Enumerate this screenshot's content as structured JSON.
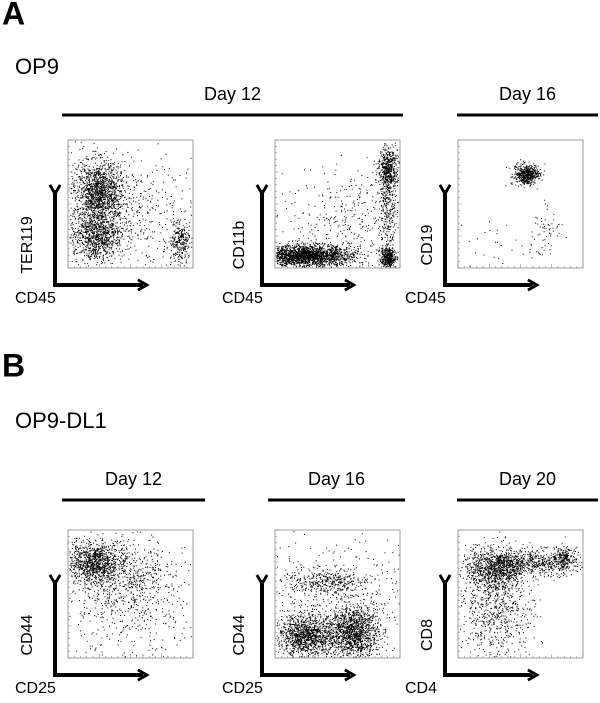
{
  "panel_a": {
    "label": "A",
    "title": "OP9",
    "groups": [
      {
        "label": "Day 12"
      },
      {
        "label": "Day 16"
      }
    ],
    "plots": [
      {
        "y_axis": "TER119",
        "x_axis": "CD45"
      },
      {
        "y_axis": "CD11b",
        "x_axis": "CD45"
      },
      {
        "y_axis": "CD19",
        "x_axis": "CD45"
      }
    ]
  },
  "panel_b": {
    "label": "B",
    "title": "OP9-DL1",
    "groups": [
      {
        "label": "Day 12"
      },
      {
        "label": "Day 16"
      },
      {
        "label": "Day 20"
      }
    ],
    "plots": [
      {
        "y_axis": "CD44",
        "x_axis": "CD25"
      },
      {
        "y_axis": "CD44",
        "x_axis": "CD25"
      },
      {
        "y_axis": "CD8",
        "x_axis": "CD4"
      }
    ]
  }
}
